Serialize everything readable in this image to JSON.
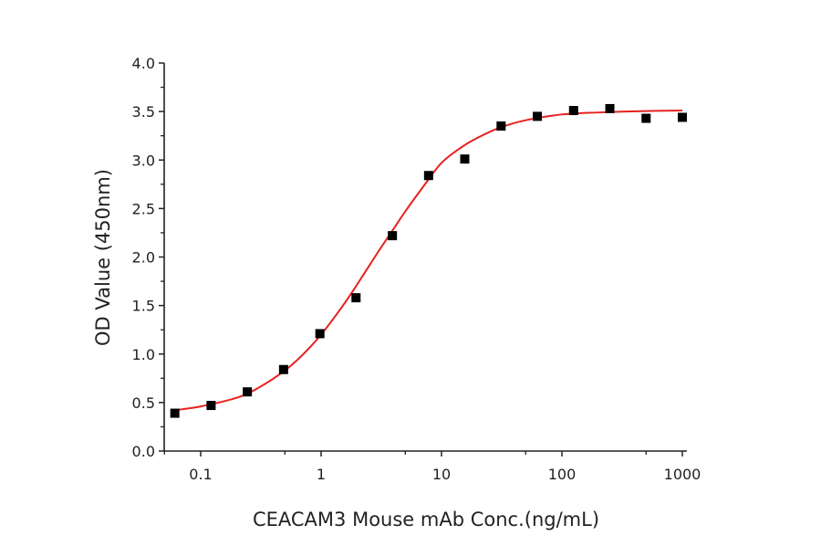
{
  "chart_data": {
    "type": "scatter",
    "title": "",
    "xlabel": "CEACAM3 Mouse mAb Conc.(ng/mL)",
    "ylabel": "OD Value (450nm)",
    "x_scale": "log",
    "xlim": [
      0.05,
      1100
    ],
    "ylim": [
      0,
      4.0
    ],
    "x_ticks": [
      0.1,
      1,
      10,
      100,
      1000
    ],
    "x_tick_labels": [
      "0.1",
      "1",
      "10",
      "100",
      "1000"
    ],
    "y_ticks": [
      0,
      0.5,
      1.0,
      1.5,
      2.0,
      2.5,
      3.0,
      3.5,
      4.0
    ],
    "y_tick_labels": [
      "0.0",
      "0.5",
      "1.0",
      "1.5",
      "2.0",
      "2.5",
      "3.0",
      "3.5",
      "4.0"
    ],
    "grid": false,
    "legend": "none",
    "series": [
      {
        "kind": "points",
        "marker": "square",
        "color": "#000000",
        "x": [
          0.061,
          0.122,
          0.244,
          0.488,
          0.977,
          1.95,
          3.91,
          7.81,
          15.6,
          31.25,
          62.5,
          125,
          250,
          500,
          1000
        ],
        "y": [
          0.39,
          0.47,
          0.61,
          0.84,
          1.21,
          1.58,
          2.22,
          2.84,
          3.01,
          3.35,
          3.45,
          3.51,
          3.53,
          3.43,
          3.44
        ]
      },
      {
        "kind": "fit-line",
        "color": "#e8201f",
        "x": [
          0.06,
          0.1,
          0.2,
          0.3,
          0.5,
          0.7,
          1,
          1.5,
          2,
          3,
          4,
          5,
          7,
          10,
          15,
          20,
          30,
          50,
          100,
          200,
          500,
          1000
        ],
        "y": [
          0.42,
          0.46,
          0.55,
          0.65,
          0.83,
          0.99,
          1.2,
          1.49,
          1.72,
          2.06,
          2.29,
          2.47,
          2.72,
          2.97,
          3.14,
          3.23,
          3.33,
          3.41,
          3.47,
          3.49,
          3.505,
          3.51
        ]
      }
    ]
  }
}
